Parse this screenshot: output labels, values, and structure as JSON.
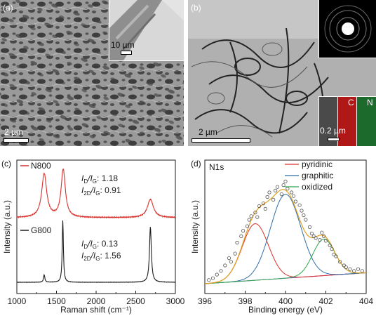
{
  "panels": {
    "a": {
      "label": "(a)",
      "main_scale": "2 µm",
      "inset_scale": "10 µm"
    },
    "b": {
      "label": "(b)",
      "main_scale": "2 µm",
      "eds_scale": "0.2 µm",
      "eds_c": "C",
      "eds_n": "N"
    },
    "c": {
      "label": "(c)"
    },
    "d": {
      "label": "(d)"
    }
  },
  "colors": {
    "n800": "#d9302b",
    "g800": "#1a1a1a",
    "pyridinic": "#d9302b",
    "graphitic": "#2f6ea6",
    "oxidized": "#2ea84c",
    "envelope": "#e0a020",
    "baseline": "#8a3fb0",
    "points": "#555555"
  },
  "chart_data": [
    {
      "type": "line",
      "xlabel": "Raman shift (cm⁻¹)",
      "ylabel": "Intensity (a.u.)",
      "xlim": [
        1000,
        3000
      ],
      "xticks": [
        "1000",
        "1500",
        "2000",
        "2500",
        "3000"
      ],
      "y_ticks_shown": false,
      "series": [
        {
          "name": "N800",
          "peaks": [
            {
              "x": 1345,
              "height": 1.0,
              "width": 38
            },
            {
              "x": 1585,
              "height": 1.1,
              "width": 32
            },
            {
              "x": 2685,
              "height": 0.42,
              "width": 45
            }
          ],
          "ratios": {
            "ID_IG": "1.18",
            "I2D_IG": "0.91"
          }
        },
        {
          "name": "G800",
          "peaks": [
            {
              "x": 1345,
              "height": 0.12,
              "width": 10
            },
            {
              "x": 1580,
              "height": 1.0,
              "width": 9
            },
            {
              "x": 2685,
              "height": 0.9,
              "width": 14
            }
          ],
          "ratios": {
            "ID_IG": "0.13",
            "I2D_IG": "1.56"
          }
        }
      ],
      "annotations": {
        "n800_r1_main": "I",
        "n800_r1_sub1": "D",
        "n800_r1_sep": "/I",
        "n800_r1_sub2": "G",
        "n800_r1_val": ": 1.18",
        "n800_r2_main": "I",
        "n800_r2_sub1": "2D",
        "n800_r2_sep": "/I",
        "n800_r2_sub2": "G",
        "n800_r2_val": ": 0.91",
        "g800_r1_val": ": 0.13",
        "g800_r2_val": ": 1.56"
      }
    },
    {
      "type": "line",
      "title": "N1s",
      "xlabel": "Binding energy (eV)",
      "ylabel": "Intensity (a.u.)",
      "xlim": [
        396,
        404
      ],
      "xticks": [
        "396",
        "398",
        "400",
        "402",
        "404"
      ],
      "y_ticks_shown": false,
      "legend_position": "top-right",
      "components": [
        {
          "name": "pyridinic",
          "center": 398.5,
          "height": 0.62,
          "sigma": 0.65
        },
        {
          "name": "graphitic",
          "center": 400.0,
          "height": 0.92,
          "sigma": 0.75
        },
        {
          "name": "oxidized",
          "center": 401.9,
          "height": 0.4,
          "sigma": 0.55
        }
      ],
      "baseline": {
        "start": 0.0,
        "end": 0.12
      },
      "points": [
        [
          396.2,
          0.04
        ],
        [
          396.4,
          0.06
        ],
        [
          396.6,
          0.1
        ],
        [
          396.8,
          0.14
        ],
        [
          397.0,
          0.2
        ],
        [
          397.2,
          0.28
        ],
        [
          397.3,
          0.24
        ],
        [
          397.5,
          0.33
        ],
        [
          397.6,
          0.45
        ],
        [
          397.8,
          0.52
        ],
        [
          397.9,
          0.58
        ],
        [
          398.1,
          0.63
        ],
        [
          398.2,
          0.7
        ],
        [
          398.3,
          0.74
        ],
        [
          398.5,
          0.78
        ],
        [
          398.6,
          0.73
        ],
        [
          398.7,
          0.85
        ],
        [
          398.9,
          0.88
        ],
        [
          399.0,
          0.82
        ],
        [
          399.1,
          0.95
        ],
        [
          399.2,
          1.0
        ],
        [
          399.4,
          0.92
        ],
        [
          399.5,
          1.02
        ],
        [
          399.6,
          1.06
        ],
        [
          399.8,
          0.98
        ],
        [
          399.9,
          1.08
        ],
        [
          400.0,
          1.12
        ],
        [
          400.1,
          1.04
        ],
        [
          400.3,
          1.0
        ],
        [
          400.4,
          0.96
        ],
        [
          400.5,
          0.9
        ],
        [
          400.7,
          0.86
        ],
        [
          400.8,
          0.8
        ],
        [
          400.9,
          0.75
        ],
        [
          401.0,
          0.7
        ],
        [
          401.2,
          0.62
        ],
        [
          401.3,
          0.55
        ],
        [
          401.4,
          0.52
        ],
        [
          401.5,
          0.5
        ],
        [
          401.7,
          0.48
        ],
        [
          401.8,
          0.56
        ],
        [
          401.9,
          0.52
        ],
        [
          402.0,
          0.47
        ],
        [
          402.2,
          0.42
        ],
        [
          402.3,
          0.38
        ],
        [
          402.4,
          0.32
        ],
        [
          402.5,
          0.3
        ],
        [
          402.7,
          0.24
        ],
        [
          402.9,
          0.2
        ],
        [
          403.0,
          0.18
        ],
        [
          403.2,
          0.16
        ],
        [
          403.4,
          0.14
        ],
        [
          403.6,
          0.16
        ],
        [
          403.8,
          0.14
        ]
      ]
    }
  ]
}
